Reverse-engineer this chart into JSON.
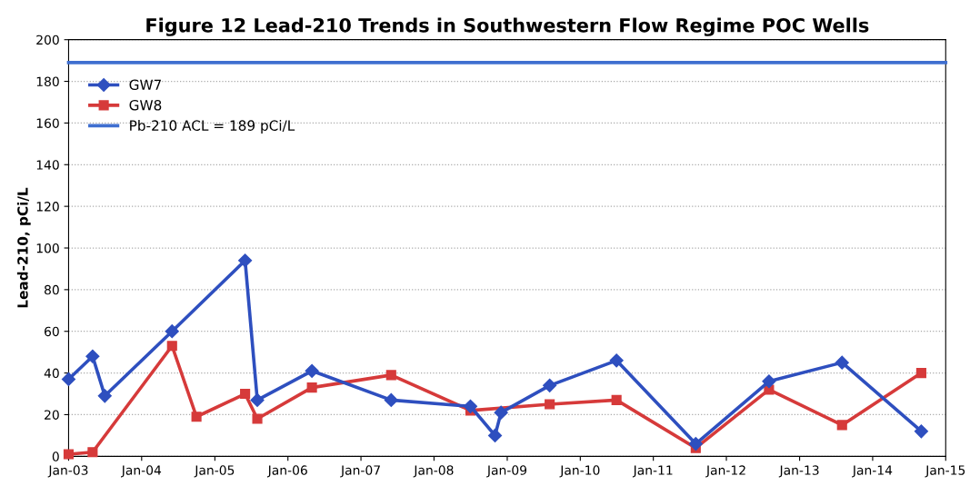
{
  "chart_data": {
    "type": "line",
    "title": "Figure 12 Lead-210 Trends in Southwestern Flow Regime POC Wells",
    "ylabel": "Lead-210, pCi/L",
    "series": [
      {
        "name": "GW7",
        "color": "#2e4fbf",
        "marker": "diamond",
        "x": [
          "2003-01",
          "2003-05",
          "2003-07",
          "2004-06",
          "2005-06",
          "2005-08",
          "2006-05",
          "2007-06",
          "2008-07",
          "2008-11",
          "2008-12",
          "2009-08",
          "2010-07",
          "2011-08",
          "2012-08",
          "2013-08",
          "2014-09"
        ],
        "values": [
          37,
          48,
          29,
          60,
          94,
          27,
          41,
          27,
          24,
          10,
          21,
          34,
          46,
          6,
          36,
          45,
          12
        ]
      },
      {
        "name": "GW8",
        "color": "#d63a3a",
        "marker": "square",
        "x": [
          "2003-01",
          "2003-05",
          "2004-06",
          "2004-10",
          "2005-06",
          "2005-08",
          "2006-05",
          "2007-06",
          "2008-07",
          "2009-08",
          "2010-07",
          "2011-08",
          "2012-08",
          "2013-08",
          "2014-09"
        ],
        "values": [
          1,
          2,
          53,
          19,
          30,
          18,
          33,
          39,
          22,
          25,
          27,
          4,
          32,
          15,
          40
        ]
      },
      {
        "name": "Pb-210 ACL = 189 pCi/L",
        "color": "#3f6fd0",
        "marker": "none",
        "x": [
          "2003-01",
          "2015-01"
        ],
        "values": [
          189,
          189
        ]
      }
    ],
    "xlim": [
      "2003-01",
      "2015-01"
    ],
    "xticks": [
      {
        "value": "2003-01",
        "label": "Jan-03"
      },
      {
        "value": "2004-01",
        "label": "Jan-04"
      },
      {
        "value": "2005-01",
        "label": "Jan-05"
      },
      {
        "value": "2006-01",
        "label": "Jan-06"
      },
      {
        "value": "2007-01",
        "label": "Jan-07"
      },
      {
        "value": "2008-01",
        "label": "Jan-08"
      },
      {
        "value": "2009-01",
        "label": "Jan-09"
      },
      {
        "value": "2010-01",
        "label": "Jan-10"
      },
      {
        "value": "2011-01",
        "label": "Jan-11"
      },
      {
        "value": "2012-01",
        "label": "Jan-12"
      },
      {
        "value": "2013-01",
        "label": "Jan-13"
      },
      {
        "value": "2014-01",
        "label": "Jan-14"
      },
      {
        "value": "2015-01",
        "label": "Jan-15"
      }
    ],
    "ylim": [
      0,
      200
    ],
    "yticks": [
      0,
      20,
      40,
      60,
      80,
      100,
      120,
      140,
      160,
      180,
      200
    ],
    "grid": "y",
    "legend": "top left"
  }
}
